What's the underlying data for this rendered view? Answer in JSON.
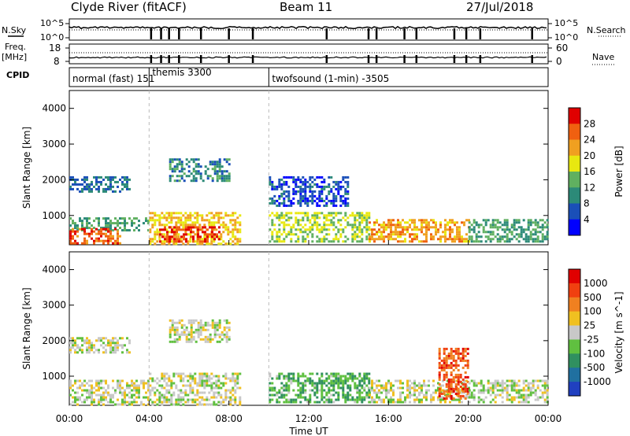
{
  "header": {
    "station": "Clyde River (fitACF)",
    "beam": "Beam 11",
    "date": "27/Jul/2018"
  },
  "top_panels": {
    "nsky_label": "N.Sky",
    "nsky_ticks": [
      "10^5",
      "10^0"
    ],
    "nsearch_label": "N.Search",
    "nsearch_ticks": [
      "10^5",
      "10^0"
    ],
    "freq_label_1": "Freq.",
    "freq_label_2": "[MHz]",
    "freq_ticks": [
      "18",
      "8"
    ],
    "nave_label": "Nave",
    "nave_ticks": [
      "60",
      "0"
    ],
    "cpid_label": "CPID",
    "modes": [
      {
        "name": "normal (fast) 151",
        "start_hour": 0
      },
      {
        "name": "themis 3300",
        "start_hour": 4
      },
      {
        "name": "twofsound (1-min) -3505",
        "start_hour": 10
      }
    ]
  },
  "chart_data": [
    {
      "type": "heatmap",
      "title": "",
      "xlabel": "",
      "ylabel": "Slant Range [km]",
      "xlim": [
        0,
        24
      ],
      "ylim": [
        180,
        4500
      ],
      "x_ticks": [
        "00:00",
        "04:00",
        "08:00",
        "12:00",
        "16:00",
        "20:00",
        "00:00"
      ],
      "y_ticks": [
        "1000",
        "2000",
        "3000",
        "4000"
      ],
      "colorbar": {
        "label": "Power [dB]",
        "range": [
          0,
          32
        ],
        "ticks": [
          "4",
          "8",
          "12",
          "16",
          "20",
          "24",
          "28"
        ],
        "colors": [
          "#0000ff",
          "#1a4fb8",
          "#2c8a78",
          "#60b060",
          "#e8e810",
          "#f0a020",
          "#f06010",
          "#e00000"
        ]
      },
      "echo_bands": [
        {
          "t_start": 0.0,
          "t_end": 3.0,
          "r_min": 1700,
          "r_max": 2100,
          "value": 8
        },
        {
          "t_start": 0.0,
          "t_end": 4.0,
          "r_min": 600,
          "r_max": 950,
          "value": 12
        },
        {
          "t_start": 0.0,
          "t_end": 2.5,
          "r_min": 200,
          "r_max": 650,
          "value": 26
        },
        {
          "t_start": 4.0,
          "t_end": 8.5,
          "r_min": 200,
          "r_max": 1100,
          "value": 20
        },
        {
          "t_start": 4.5,
          "t_end": 7.5,
          "r_min": 300,
          "r_max": 700,
          "value": 28
        },
        {
          "t_start": 5.0,
          "t_end": 8.0,
          "r_min": 2000,
          "r_max": 2600,
          "value": 10
        },
        {
          "t_start": 10.0,
          "t_end": 15.0,
          "r_min": 300,
          "r_max": 1100,
          "value": 16
        },
        {
          "t_start": 15.0,
          "t_end": 20.0,
          "r_min": 300,
          "r_max": 900,
          "value": 22
        },
        {
          "t_start": 10.0,
          "t_end": 14.0,
          "r_min": 1300,
          "r_max": 2100,
          "value": 6
        },
        {
          "t_start": 20.0,
          "t_end": 24.0,
          "r_min": 300,
          "r_max": 900,
          "value": 12
        }
      ]
    },
    {
      "type": "heatmap",
      "title": "",
      "xlabel": "Time UT",
      "ylabel": "Slant Range [km]",
      "xlim": [
        0,
        24
      ],
      "ylim": [
        180,
        4500
      ],
      "x_ticks": [
        "00:00",
        "04:00",
        "08:00",
        "12:00",
        "16:00",
        "20:00",
        "00:00"
      ],
      "y_ticks": [
        "1000",
        "2000",
        "3000",
        "4000"
      ],
      "colorbar": {
        "label": "Velocity [m s^-1]",
        "range": [
          -1000,
          1000
        ],
        "ticks": [
          "1000",
          "500",
          "100",
          "25",
          "-25",
          "-100",
          "-500",
          "-1000"
        ],
        "colors": [
          "#2040c0",
          "#2070a0",
          "#309060",
          "#60c040",
          "#c8c8c8",
          "#f0c020",
          "#f08020",
          "#f04010",
          "#e00000"
        ]
      },
      "echo_bands": [
        {
          "t_start": 0.0,
          "t_end": 3.0,
          "r_min": 1700,
          "r_max": 2100,
          "value": 0
        },
        {
          "t_start": 0.0,
          "t_end": 4.0,
          "r_min": 200,
          "r_max": 900,
          "value": 0
        },
        {
          "t_start": 4.0,
          "t_end": 8.5,
          "r_min": 200,
          "r_max": 1100,
          "value": 0
        },
        {
          "t_start": 5.0,
          "t_end": 8.0,
          "r_min": 2000,
          "r_max": 2600,
          "value": 0
        },
        {
          "t_start": 10.0,
          "t_end": 15.0,
          "r_min": 300,
          "r_max": 1100,
          "value": -300
        },
        {
          "t_start": 15.0,
          "t_end": 20.0,
          "r_min": 300,
          "r_max": 900,
          "value": 0
        },
        {
          "t_start": 18.5,
          "t_end": 20.0,
          "r_min": 400,
          "r_max": 1800,
          "value": 600
        },
        {
          "t_start": 20.0,
          "t_end": 24.0,
          "r_min": 300,
          "r_max": 900,
          "value": -50
        }
      ]
    }
  ]
}
